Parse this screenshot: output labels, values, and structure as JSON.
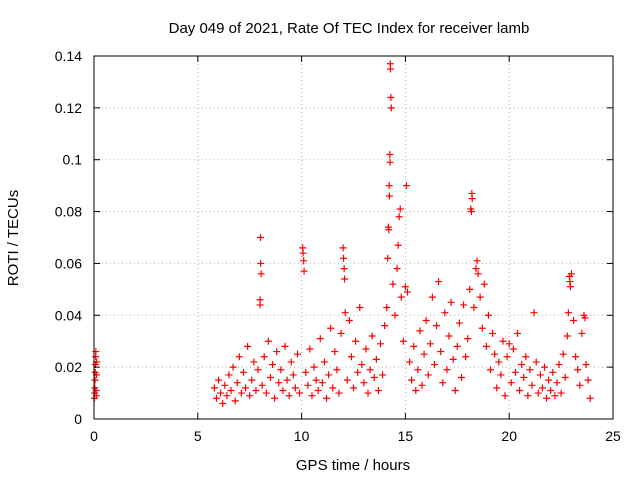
{
  "chart_data": {
    "type": "scatter",
    "title": "Day 049 of 2021, Rate Of TEC Index for receiver lamb",
    "xlabel": "GPS time / hours",
    "ylabel": "ROTI / TECUs",
    "xlim": [
      0,
      25
    ],
    "ylim": [
      0,
      0.14
    ],
    "xticks": [
      0,
      5,
      10,
      15,
      20,
      25
    ],
    "yticks": [
      0,
      0.02,
      0.04,
      0.06,
      0.08,
      0.1,
      0.12,
      0.14
    ],
    "xtick_labels": [
      "0",
      "5",
      "10",
      "15",
      "20",
      "25"
    ],
    "ytick_labels": [
      "0",
      "0.02",
      "0.04",
      "0.06",
      "0.08",
      "0.1",
      "0.12",
      "0.14"
    ],
    "grid": true,
    "legend": "none",
    "marker": "+",
    "color": "#ff0000",
    "series": [
      {
        "points": [
          [
            0.02,
            0.008
          ],
          [
            0.03,
            0.01
          ],
          [
            0.04,
            0.012
          ],
          [
            0.05,
            0.015
          ],
          [
            0.06,
            0.018
          ],
          [
            0.07,
            0.021
          ],
          [
            0.08,
            0.024
          ],
          [
            0.09,
            0.026
          ],
          [
            0.1,
            0.011
          ],
          [
            0.11,
            0.009
          ],
          [
            0.12,
            0.017
          ],
          [
            0.13,
            0.022
          ],
          [
            5.8,
            0.012
          ],
          [
            5.9,
            0.008
          ],
          [
            6.0,
            0.015
          ],
          [
            6.1,
            0.01
          ],
          [
            6.2,
            0.006
          ],
          [
            6.3,
            0.013
          ],
          [
            6.4,
            0.009
          ],
          [
            6.5,
            0.017
          ],
          [
            6.6,
            0.011
          ],
          [
            6.7,
            0.02
          ],
          [
            6.8,
            0.007
          ],
          [
            6.9,
            0.014
          ],
          [
            7.0,
            0.024
          ],
          [
            7.1,
            0.01
          ],
          [
            7.2,
            0.018
          ],
          [
            7.3,
            0.012
          ],
          [
            7.4,
            0.028
          ],
          [
            7.5,
            0.009
          ],
          [
            7.6,
            0.015
          ],
          [
            7.7,
            0.022
          ],
          [
            7.8,
            0.011
          ],
          [
            7.9,
            0.019
          ],
          [
            8.0,
            0.046
          ],
          [
            8.0,
            0.044
          ],
          [
            8.02,
            0.07
          ],
          [
            8.03,
            0.06
          ],
          [
            8.05,
            0.056
          ],
          [
            8.1,
            0.013
          ],
          [
            8.2,
            0.024
          ],
          [
            8.3,
            0.01
          ],
          [
            8.4,
            0.03
          ],
          [
            8.5,
            0.016
          ],
          [
            8.6,
            0.021
          ],
          [
            8.7,
            0.008
          ],
          [
            8.8,
            0.026
          ],
          [
            8.9,
            0.014
          ],
          [
            9.0,
            0.019
          ],
          [
            9.1,
            0.011
          ],
          [
            9.2,
            0.028
          ],
          [
            9.3,
            0.015
          ],
          [
            9.4,
            0.009
          ],
          [
            9.5,
            0.022
          ],
          [
            9.6,
            0.017
          ],
          [
            9.7,
            0.012
          ],
          [
            9.8,
            0.025
          ],
          [
            9.9,
            0.01
          ],
          [
            10.05,
            0.066
          ],
          [
            10.07,
            0.064
          ],
          [
            10.1,
            0.061
          ],
          [
            10.12,
            0.057
          ],
          [
            10.2,
            0.018
          ],
          [
            10.3,
            0.013
          ],
          [
            10.4,
            0.027
          ],
          [
            10.5,
            0.009
          ],
          [
            10.6,
            0.02
          ],
          [
            10.7,
            0.015
          ],
          [
            10.8,
            0.011
          ],
          [
            10.9,
            0.031
          ],
          [
            11.0,
            0.014
          ],
          [
            11.1,
            0.022
          ],
          [
            11.2,
            0.008
          ],
          [
            11.3,
            0.017
          ],
          [
            11.4,
            0.035
          ],
          [
            11.5,
            0.012
          ],
          [
            11.6,
            0.026
          ],
          [
            11.7,
            0.019
          ],
          [
            11.8,
            0.01
          ],
          [
            11.9,
            0.033
          ],
          [
            12.0,
            0.066
          ],
          [
            12.02,
            0.062
          ],
          [
            12.05,
            0.058
          ],
          [
            12.07,
            0.054
          ],
          [
            12.1,
            0.041
          ],
          [
            12.2,
            0.015
          ],
          [
            12.3,
            0.038
          ],
          [
            12.4,
            0.024
          ],
          [
            12.5,
            0.012
          ],
          [
            12.6,
            0.03
          ],
          [
            12.7,
            0.018
          ],
          [
            12.8,
            0.043
          ],
          [
            12.9,
            0.021
          ],
          [
            13.0,
            0.014
          ],
          [
            13.1,
            0.027
          ],
          [
            13.2,
            0.01
          ],
          [
            13.3,
            0.019
          ],
          [
            13.4,
            0.032
          ],
          [
            13.5,
            0.016
          ],
          [
            13.6,
            0.023
          ],
          [
            13.7,
            0.011
          ],
          [
            13.8,
            0.029
          ],
          [
            13.9,
            0.017
          ],
          [
            14.0,
            0.036
          ],
          [
            14.1,
            0.043
          ],
          [
            14.15,
            0.062
          ],
          [
            14.18,
            0.074
          ],
          [
            14.2,
            0.073
          ],
          [
            14.22,
            0.09
          ],
          [
            14.23,
            0.086
          ],
          [
            14.25,
            0.102
          ],
          [
            14.26,
            0.099
          ],
          [
            14.27,
            0.137
          ],
          [
            14.28,
            0.135
          ],
          [
            14.3,
            0.124
          ],
          [
            14.32,
            0.12
          ],
          [
            14.4,
            0.052
          ],
          [
            14.5,
            0.04
          ],
          [
            14.6,
            0.058
          ],
          [
            14.65,
            0.067
          ],
          [
            14.7,
            0.078
          ],
          [
            14.75,
            0.081
          ],
          [
            14.8,
            0.047
          ],
          [
            14.9,
            0.03
          ],
          [
            15.0,
            0.051
          ],
          [
            15.05,
            0.09
          ],
          [
            15.1,
            0.049
          ],
          [
            15.2,
            0.022
          ],
          [
            15.3,
            0.015
          ],
          [
            15.4,
            0.028
          ],
          [
            15.5,
            0.011
          ],
          [
            15.6,
            0.019
          ],
          [
            15.7,
            0.034
          ],
          [
            15.8,
            0.013
          ],
          [
            15.9,
            0.025
          ],
          [
            16.0,
            0.038
          ],
          [
            16.1,
            0.017
          ],
          [
            16.2,
            0.029
          ],
          [
            16.3,
            0.047
          ],
          [
            16.4,
            0.021
          ],
          [
            16.5,
            0.036
          ],
          [
            16.6,
            0.053
          ],
          [
            16.7,
            0.026
          ],
          [
            16.8,
            0.014
          ],
          [
            16.9,
            0.041
          ],
          [
            17.0,
            0.019
          ],
          [
            17.1,
            0.032
          ],
          [
            17.2,
            0.045
          ],
          [
            17.3,
            0.023
          ],
          [
            17.4,
            0.011
          ],
          [
            17.5,
            0.028
          ],
          [
            17.6,
            0.037
          ],
          [
            17.7,
            0.016
          ],
          [
            17.8,
            0.044
          ],
          [
            17.9,
            0.024
          ],
          [
            18.0,
            0.031
          ],
          [
            18.1,
            0.05
          ],
          [
            18.15,
            0.081
          ],
          [
            18.18,
            0.08
          ],
          [
            18.2,
            0.087
          ],
          [
            18.22,
            0.085
          ],
          [
            18.3,
            0.043
          ],
          [
            18.4,
            0.058
          ],
          [
            18.45,
            0.061
          ],
          [
            18.5,
            0.056
          ],
          [
            18.6,
            0.047
          ],
          [
            18.7,
            0.035
          ],
          [
            18.8,
            0.052
          ],
          [
            18.9,
            0.028
          ],
          [
            19.0,
            0.04
          ],
          [
            19.1,
            0.019
          ],
          [
            19.2,
            0.033
          ],
          [
            19.3,
            0.025
          ],
          [
            19.4,
            0.012
          ],
          [
            19.5,
            0.022
          ],
          [
            19.6,
            0.017
          ],
          [
            19.7,
            0.03
          ],
          [
            19.8,
            0.009
          ],
          [
            19.9,
            0.024
          ],
          [
            20.0,
            0.029
          ],
          [
            20.1,
            0.014
          ],
          [
            20.2,
            0.027
          ],
          [
            20.3,
            0.018
          ],
          [
            20.4,
            0.033
          ],
          [
            20.5,
            0.011
          ],
          [
            20.6,
            0.021
          ],
          [
            20.7,
            0.016
          ],
          [
            20.8,
            0.024
          ],
          [
            20.9,
            0.009
          ],
          [
            21.0,
            0.019
          ],
          [
            21.1,
            0.013
          ],
          [
            21.2,
            0.041
          ],
          [
            21.3,
            0.022
          ],
          [
            21.4,
            0.01
          ],
          [
            21.5,
            0.017
          ],
          [
            21.6,
            0.012
          ],
          [
            21.7,
            0.02
          ],
          [
            21.8,
            0.008
          ],
          [
            21.9,
            0.015
          ],
          [
            22.0,
            0.011
          ],
          [
            22.1,
            0.018
          ],
          [
            22.2,
            0.009
          ],
          [
            22.3,
            0.014
          ],
          [
            22.4,
            0.021
          ],
          [
            22.5,
            0.01
          ],
          [
            22.6,
            0.025
          ],
          [
            22.7,
            0.016
          ],
          [
            22.8,
            0.032
          ],
          [
            22.85,
            0.041
          ],
          [
            22.9,
            0.055
          ],
          [
            22.92,
            0.053
          ],
          [
            22.95,
            0.051
          ],
          [
            23.0,
            0.056
          ],
          [
            23.1,
            0.038
          ],
          [
            23.2,
            0.024
          ],
          [
            23.3,
            0.019
          ],
          [
            23.4,
            0.013
          ],
          [
            23.5,
            0.033
          ],
          [
            23.6,
            0.04
          ],
          [
            23.65,
            0.039
          ],
          [
            23.7,
            0.021
          ],
          [
            23.8,
            0.015
          ],
          [
            23.9,
            0.008
          ]
        ]
      }
    ]
  }
}
